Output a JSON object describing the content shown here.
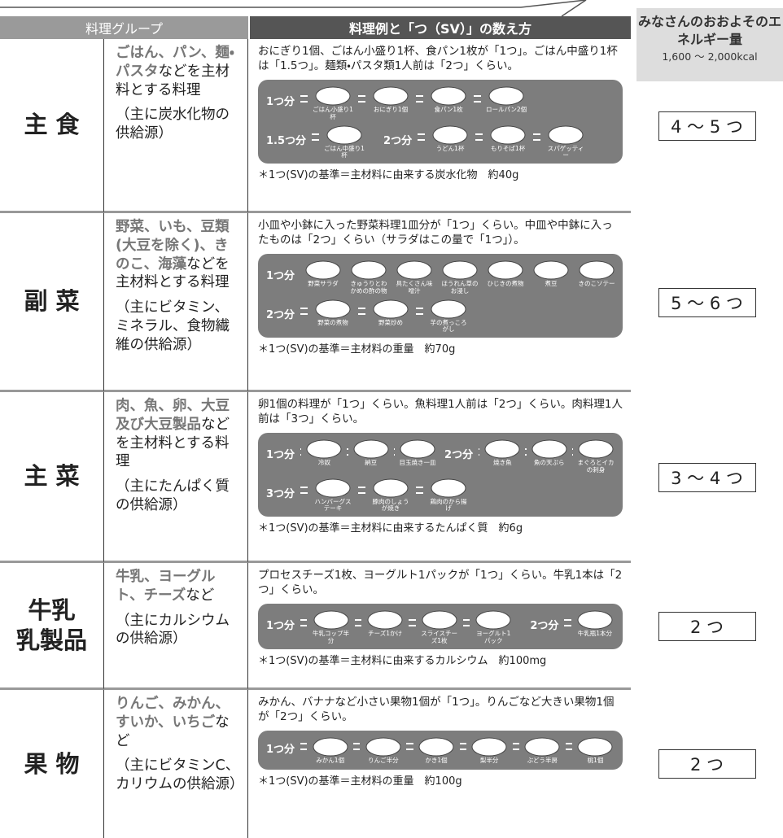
{
  "header": {
    "group_column": "料理グループ",
    "example_column": "料理例と「つ（SV）」の数え方"
  },
  "energy": {
    "title": "みなさんのおおよそのエネルギー量",
    "range": "1,600 ～ 2,000kcal"
  },
  "rows": [
    {
      "group": [
        "主 食"
      ],
      "highlight": "ごはん、パン、麺・パスタ",
      "rest": "などを主材料とする料理",
      "source": "（主に炭水化物の供給源）",
      "explanation": "おにぎり1個、ごはん小盛り1杯、食パン1枚が「1つ」。ごはん中盛り1杯は「1.5つ」。麺類・パスタ類1人前は「2つ」くらい。",
      "lines": [
        [
          {
            "unit": "1つ分",
            "items": [
              "ごはん小盛り1杯",
              "おにぎり1個",
              "食パン1枚",
              "ロールパン2個"
            ]
          }
        ],
        [
          {
            "unit": "1.5つ分",
            "items": [
              "ごはん中盛り1杯"
            ]
          },
          {
            "unit": "2つ分",
            "items": [
              "うどん1杯",
              "もりそば1杯",
              "スパゲッティー"
            ]
          }
        ]
      ],
      "standard": "＊1つ(SV)の基準＝主材料に由来する炭水化物　約40g",
      "amount": "4 ～ 5 つ"
    },
    {
      "group": [
        "副 菜"
      ],
      "highlight": "野菜、いも、豆類(大豆を除く)、きのこ、海藻",
      "rest": "などを主材料とする料理",
      "source": "（主にビタミン、ミネラル、食物繊維の供給源）",
      "explanation": "小皿や小鉢に入った野菜料理1皿分が「1つ」くらい。中皿や中鉢に入ったものは「2つ」くらい（サラダはこの量で「1つ」）。",
      "lines": [
        [
          {
            "unit": "1つ分",
            "items": [
              "野菜サラダ",
              "きゅうりとわかめの酢の物",
              "具たくさん味噌汁",
              "ほうれん草のお浸し",
              "ひじきの煮物",
              "煮豆",
              "きのこソテー"
            ]
          }
        ],
        [
          {
            "unit": "2つ分",
            "items": [
              "野菜の煮物",
              "野菜炒め",
              "芋の煮っころがし"
            ]
          }
        ]
      ],
      "standard": "＊1つ(SV)の基準＝主材料の重量　約70g",
      "amount": "5 ～ 6 つ"
    },
    {
      "group": [
        "主 菜"
      ],
      "highlight": "肉、魚、卵、大豆及び大豆製品",
      "rest": "などを主材料とする料理",
      "source": "（主にたんぱく質の供給源）",
      "explanation": "卵1個の料理が「1つ」くらい。魚料理1人前は「2つ」くらい。肉料理1人前は「3つ」くらい。",
      "lines": [
        [
          {
            "unit": "1つ分",
            "items": [
              "冷奴",
              "納豆",
              "目玉焼き一皿"
            ]
          },
          {
            "unit": "2つ分",
            "items": [
              "焼き魚",
              "魚の天ぷら",
              "まぐろとイカの刺身"
            ]
          }
        ],
        [
          {
            "unit": "3つ分",
            "items": [
              "ハンバーグステーキ",
              "豚肉のしょうが焼き",
              "鶏肉のから揚げ"
            ]
          }
        ]
      ],
      "standard": "＊1つ(SV)の基準＝主材料に由来するたんぱく質　約6g",
      "amount": "3 ～ 4 つ"
    },
    {
      "group": [
        "牛乳",
        "乳製品"
      ],
      "highlight": "牛乳、ヨーグルト、チーズ",
      "rest": "など",
      "source": "（主にカルシウムの供給源）",
      "explanation": "プロセスチーズ1枚、ヨーグルト1パックが「1つ」くらい。牛乳1本は「2つ」くらい。",
      "lines": [
        [
          {
            "unit": "1つ分",
            "items": [
              "牛乳コップ半分",
              "チーズ1かけ",
              "スライスチーズ1枚",
              "ヨーグルト1パック"
            ]
          },
          {
            "unit": "2つ分",
            "items": [
              "牛乳瓶1本分"
            ]
          }
        ]
      ],
      "standard": "＊1つ(SV)の基準＝主材料に由来するカルシウム　約100mg",
      "amount": "2 つ"
    },
    {
      "group": [
        "果 物"
      ],
      "highlight": "りんご、みかん、すいか、いちご",
      "rest": "など",
      "source": "（主にビタミンC、カリウムの供給源）",
      "explanation": "みかん、バナナなど小さい果物1個が「1つ」。りんごなど大きい果物1個が「2つ」くらい。",
      "lines": [
        [
          {
            "unit": "1つ分",
            "items": [
              "みかん1個",
              "りんご半分",
              "かき1個",
              "梨半分",
              "ぶどう半房",
              "桃1個"
            ]
          }
        ]
      ],
      "standard": "＊1つ(SV)の基準＝主材料の重量　約100g",
      "amount": "2 つ"
    }
  ]
}
